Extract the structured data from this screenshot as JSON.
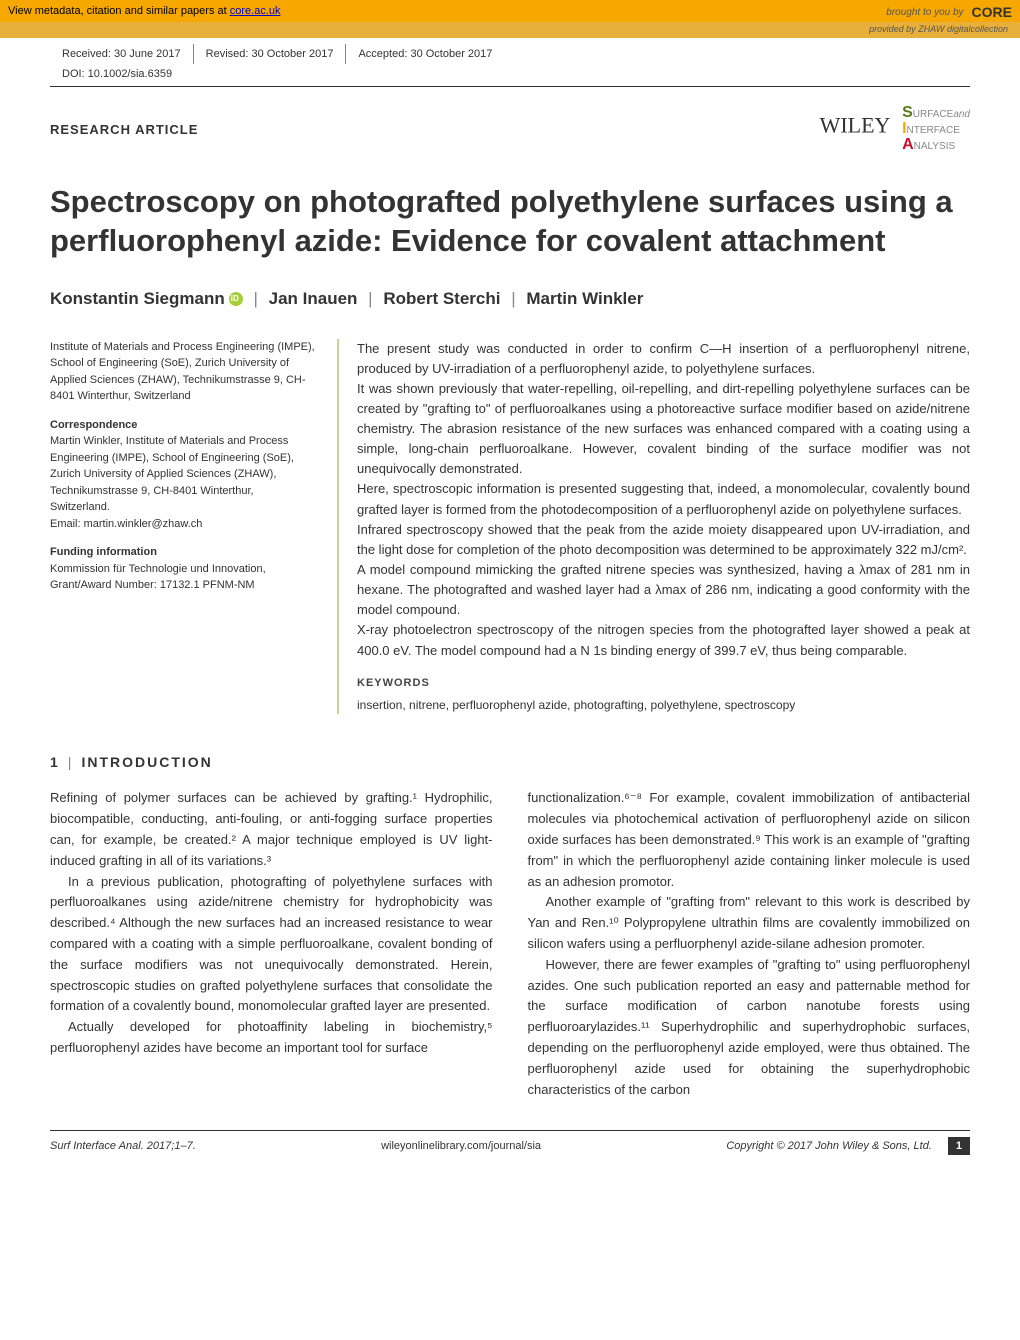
{
  "banner": {
    "metadata_text": "View metadata, citation and similar papers at ",
    "metadata_link": "core.ac.uk",
    "brought_by": "brought to you by",
    "core_label": "CORE",
    "provided_by": "provided by ZHAW digitalcollection"
  },
  "header": {
    "received": "Received: 30 June 2017",
    "revised": "Revised: 30 October 2017",
    "accepted": "Accepted: 30 October 2017",
    "doi": "DOI: 10.1002/sia.6359",
    "article_type": "RESEARCH ARTICLE",
    "publisher": "WILEY",
    "journal_s": "S",
    "journal_surface": "URFACE",
    "journal_and": "and",
    "journal_i": "I",
    "journal_interface": "NTERFACE",
    "journal_a": "A",
    "journal_analysis": "NALYSIS"
  },
  "title": "Spectroscopy on photografted polyethylene surfaces using a perfluorophenyl azide: Evidence for covalent attachment",
  "authors": {
    "a1": "Konstantin Siegmann",
    "a2": "Jan Inauen",
    "a3": "Robert Sterchi",
    "a4": "Martin Winkler"
  },
  "affiliation": {
    "text": "Institute of Materials and Process Engineering (IMPE), School of Engineering (SoE), Zurich University of Applied Sciences (ZHAW), Technikumstrasse 9, CH-8401 Winterthur, Switzerland",
    "corr_heading": "Correspondence",
    "corr_text": "Martin Winkler, Institute of Materials and Process Engineering (IMPE), School of Engineering (SoE), Zurich University of Applied Sciences (ZHAW), Technikumstrasse 9, CH-8401 Winterthur, Switzerland.",
    "corr_email": "Email: martin.winkler@zhaw.ch",
    "funding_heading": "Funding information",
    "funding_text": "Kommission für Technologie und Innovation, Grant/Award Number: 17132.1 PFNM-NM"
  },
  "abstract": {
    "p1": "The present study was conducted in order to confirm C—H insertion of a perfluorophenyl nitrene, produced by UV-irradiation of a perfluorophenyl azide, to polyethylene surfaces.",
    "p2": "It was shown previously that water-repelling, oil-repelling, and dirt-repelling polyethylene surfaces can be created by \"grafting to\" of perfluoroalkanes using a photoreactive surface modifier based on azide/nitrene chemistry. The abrasion resistance of the new surfaces was enhanced compared with a coating using a simple, long-chain perfluoroalkane. However, covalent binding of the surface modifier was not unequivocally demonstrated.",
    "p3": "Here, spectroscopic information is presented suggesting that, indeed, a monomolecular, covalently bound grafted layer is formed from the photodecomposition of a perfluorophenyl azide on polyethylene surfaces.",
    "p4": "Infrared spectroscopy showed that the peak from the azide moiety disappeared upon UV-irradiation, and the light dose for completion of the photo decomposition was determined to be approximately 322 mJ/cm².",
    "p5": "A model compound mimicking the grafted nitrene species was synthesized, having a λmax of 281 nm in hexane. The photografted and washed layer had a λmax of 286 nm, indicating a good conformity with the model compound.",
    "p6": "X-ray photoelectron spectroscopy of the nitrogen species from the photografted layer showed a peak at 400.0 eV. The model compound had a N 1s binding energy of 399.7 eV, thus being comparable.",
    "kw_heading": "KEYWORDS",
    "kw_list": "insertion, nitrene, perfluorophenyl azide, photografting, polyethylene, spectroscopy"
  },
  "intro_heading_num": "1",
  "intro_heading": "INTRODUCTION",
  "body": {
    "l1": "Refining of polymer surfaces can be achieved by grafting.¹ Hydrophilic, biocompatible, conducting, anti-fouling, or anti-fogging surface properties can, for example, be created.² A major technique employed is UV light-induced grafting in all of its variations.³",
    "l2": "In a previous publication, photografting of polyethylene surfaces with perfluoroalkanes using azide/nitrene chemistry for hydrophobicity was described.⁴ Although the new surfaces had an increased resistance to wear compared with a coating with a simple perfluoroalkane, covalent bonding of the surface modifiers was not unequivocally demonstrated. Herein, spectroscopic studies on grafted polyethylene surfaces that consolidate the formation of a covalently bound, monomolecular grafted layer are presented.",
    "l3": "Actually developed for photoaffinity labeling in biochemistry,⁵ perfluorophenyl azides have become an important tool for surface",
    "r1": "functionalization.⁶⁻⁸ For example, covalent immobilization of antibacterial molecules via photochemical activation of perfluorophenyl azide on silicon oxide surfaces has been demonstrated.⁹ This work is an example of \"grafting from\" in which the perfluorophenyl azide containing linker molecule is used as an adhesion promotor.",
    "r2": "Another example of \"grafting from\" relevant to this work is described by Yan and Ren.¹⁰ Polypropylene ultrathin films are covalently immobilized on silicon wafers using a perfluorphenyl azide-silane adhesion promoter.",
    "r3": "However, there are fewer examples of \"grafting to\" using perfluorophenyl azides. One such publication reported an easy and patternable method for the surface modification of carbon nanotube forests using perfluoroarylazides.¹¹ Superhydrophilic and superhydrophobic surfaces, depending on the perfluorophenyl azide employed, were thus obtained. The perfluorophenyl azide used for obtaining the superhydrophobic characteristics of the carbon"
  },
  "footer": {
    "left": "Surf Interface Anal. 2017;1–7.",
    "center": "wileyonlinelibrary.com/journal/sia",
    "right": "Copyright © 2017 John Wiley & Sons, Ltd.",
    "page": "1"
  }
}
